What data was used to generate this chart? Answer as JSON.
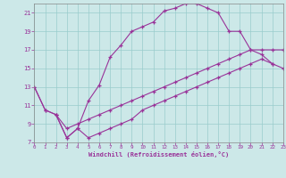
{
  "xlabel": "Windchill (Refroidissement éolien,°C)",
  "bg_color": "#cce8e8",
  "line_color": "#993399",
  "grid_color": "#99cccc",
  "xlim": [
    0,
    23
  ],
  "ylim": [
    7,
    22
  ],
  "xticks": [
    0,
    1,
    2,
    3,
    4,
    5,
    6,
    7,
    8,
    9,
    10,
    11,
    12,
    13,
    14,
    15,
    16,
    17,
    18,
    19,
    20,
    21,
    22,
    23
  ],
  "yticks": [
    7,
    9,
    11,
    13,
    15,
    17,
    19,
    21
  ],
  "curve1_x": [
    0,
    1,
    2,
    3,
    4,
    5,
    6,
    7,
    8,
    9,
    10,
    11,
    12,
    13,
    14,
    15,
    16,
    17,
    18,
    19,
    20,
    21,
    22
  ],
  "curve1_y": [
    13,
    10.5,
    10,
    7.5,
    8.5,
    11.5,
    13.2,
    16.2,
    17.5,
    19.0,
    19.5,
    20.0,
    21.2,
    21.5,
    22.0,
    22.0,
    21.5,
    21.0,
    19.0,
    19.0,
    17.0,
    16.5,
    15.5
  ],
  "curve2_x": [
    0,
    1,
    2,
    3,
    4,
    5,
    6,
    7,
    8,
    9,
    10,
    11,
    12,
    13,
    14,
    15,
    16,
    17,
    18,
    19,
    20,
    21,
    22,
    23
  ],
  "curve2_y": [
    13,
    10.5,
    10,
    8.5,
    9.0,
    9.5,
    10.0,
    10.5,
    11.0,
    11.5,
    12.0,
    12.5,
    13.0,
    13.5,
    14.0,
    14.5,
    15.0,
    15.5,
    16.0,
    16.5,
    17.0,
    17.0,
    17.0,
    17.0
  ],
  "curve3_x": [
    2,
    3,
    4,
    5,
    6,
    7,
    8,
    9,
    10,
    11,
    12,
    13,
    14,
    15,
    16,
    17,
    18,
    19,
    20,
    21,
    22,
    23
  ],
  "curve3_y": [
    10,
    7.5,
    8.5,
    7.5,
    8.0,
    8.5,
    9.0,
    9.5,
    10.5,
    11.0,
    11.5,
    12.0,
    12.5,
    13.0,
    13.5,
    14.0,
    14.5,
    15.0,
    15.5,
    16.0,
    15.5,
    15.0
  ]
}
